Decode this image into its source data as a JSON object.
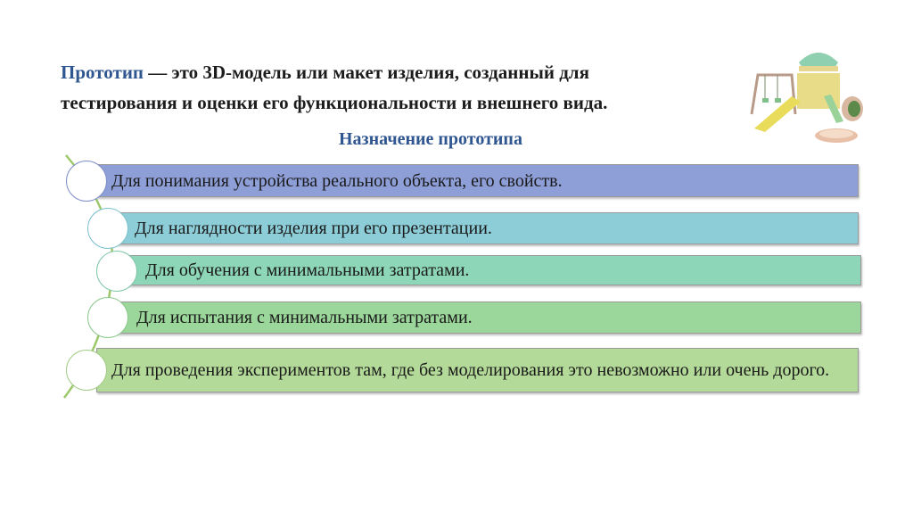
{
  "heading": {
    "keyword": "Прототип",
    "line1_rest": " — это 3D-модель или макет изделия, созданный для",
    "line2": "тестирования и оценки его функциональности и внешнего вида."
  },
  "subtitle": "Назначение прототипа",
  "items": [
    {
      "text": "Для понимания устройства реального объекта, его свойств.",
      "color": "#8e9fd8"
    },
    {
      "text": "Для наглядности изделия при его презентации.",
      "color": "#8ccdd8"
    },
    {
      "text": "Для обучения с минимальными затратами.",
      "color": "#8dd6b8"
    },
    {
      "text": "Для испытания с минимальными затратами.",
      "color": "#9bd79a"
    },
    {
      "text": "Для проведения экспериментов там, где без моделирования это невозможно или очень дорого.",
      "color": "#b3da98"
    }
  ],
  "image": {
    "name": "playground-illustration"
  }
}
